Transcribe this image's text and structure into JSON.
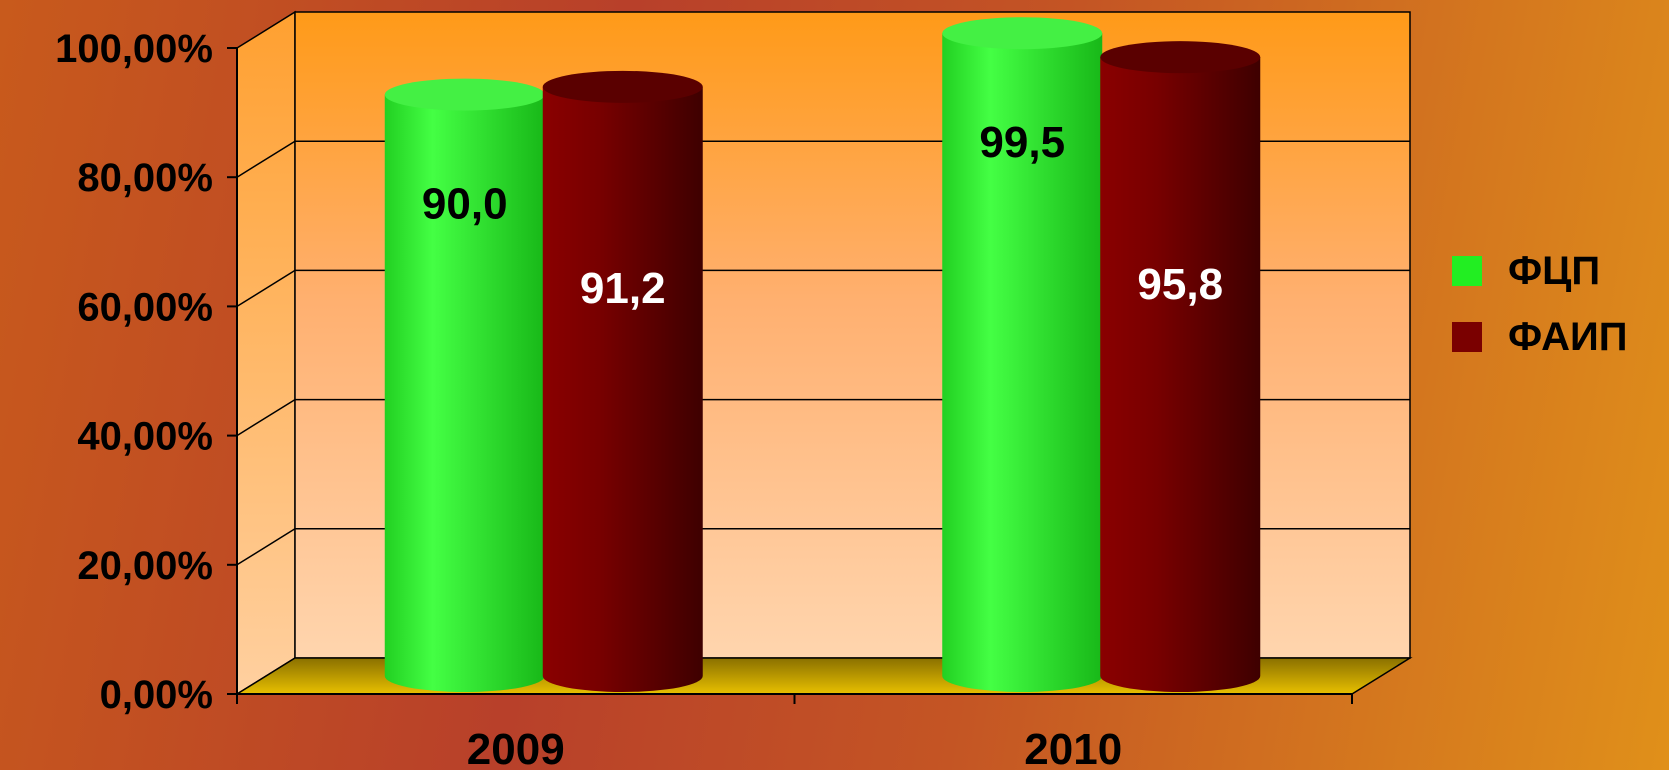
{
  "chart_data": {
    "type": "bar",
    "categories": [
      "2009",
      "2010"
    ],
    "series": [
      {
        "name": "ФЦП",
        "values": [
          90.0,
          99.5
        ],
        "labels": [
          "90,0",
          "99,5"
        ],
        "color": "#22dd22",
        "label_color": "#000000"
      },
      {
        "name": "ФАИП",
        "values": [
          91.2,
          95.8
        ],
        "labels": [
          "91,2",
          "95,8"
        ],
        "color": "#7a0000",
        "label_color": "#ffffff"
      }
    ],
    "yticks": [
      "0,00%",
      "20,00%",
      "40,00%",
      "60,00%",
      "80,00%",
      "100,00%"
    ],
    "ylim": [
      0,
      100
    ],
    "grid": true,
    "legend_position": "right",
    "style": "3d-cylinder"
  }
}
